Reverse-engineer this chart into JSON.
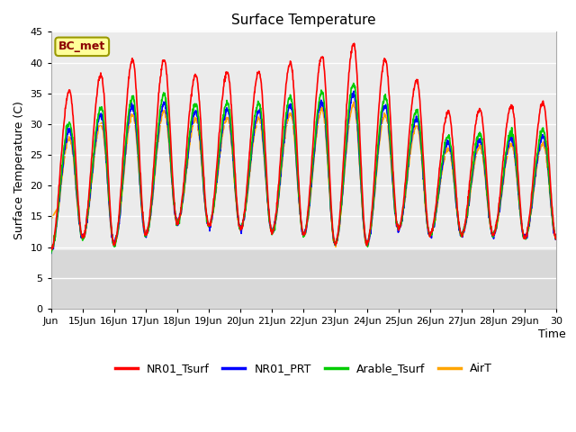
{
  "title": "Surface Temperature",
  "ylabel": "Surface Temperature (C)",
  "xlabel": "Time",
  "annotation": "BC_met",
  "ylim": [
    0,
    45
  ],
  "yticks": [
    0,
    5,
    10,
    15,
    20,
    25,
    30,
    35,
    40,
    45
  ],
  "xtick_labels": [
    "Jun",
    "15Jun",
    "16Jun",
    "17Jun",
    "18Jun",
    "19Jun",
    "20Jun",
    "21Jun",
    "22Jun",
    "23Jun",
    "24Jun",
    "25Jun",
    "26Jun",
    "27Jun",
    "28Jun",
    "29Jun",
    "30"
  ],
  "colors": {
    "NR01_Tsurf": "#ff0000",
    "NR01_PRT": "#0000ff",
    "Arable_Tsurf": "#00cc00",
    "AirT": "#ffa500"
  },
  "plot_bg_upper": "#ebebeb",
  "plot_bg_lower": "#d8d8d8",
  "grid_color": "#ffffff",
  "linewidth": 1.2,
  "n_days": 16,
  "phase_peak": 0.583,
  "phase_trough": 0.0,
  "trough_base": 11.5,
  "red_peaks": [
    35.5,
    38.0,
    40.5,
    40.5,
    38.0,
    38.5,
    38.5,
    40.0,
    41.0,
    43.0,
    40.5,
    37.0,
    32.0,
    32.5,
    33.0,
    33.5
  ],
  "red_troughs": [
    9.5,
    11.5,
    10.5,
    12.0,
    14.0,
    13.5,
    13.0,
    12.5,
    12.0,
    10.5,
    10.5,
    13.0,
    12.0,
    12.0,
    12.0,
    11.5
  ],
  "prt_scale": 0.75,
  "green_scale": 0.8,
  "orange_scale": 0.7
}
